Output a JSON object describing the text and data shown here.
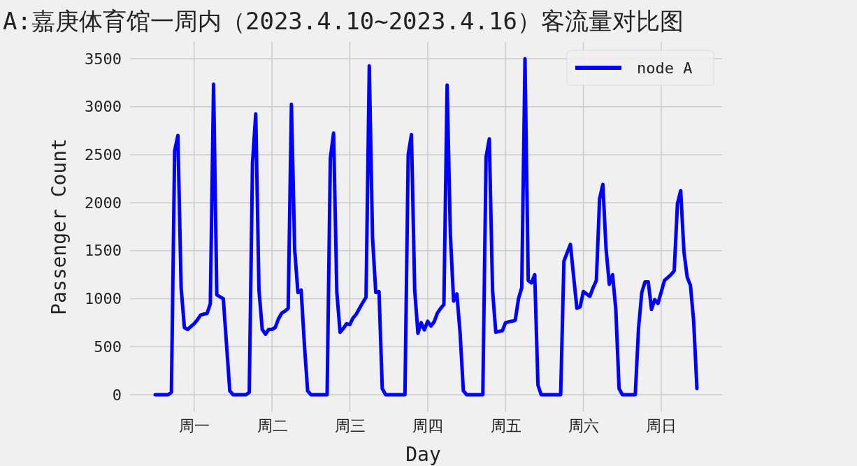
{
  "chart_data": {
    "type": "line",
    "title": "A:嘉庚体育馆一周内（2023.4.10~2023.4.16）客流量对比图",
    "xlabel": "Day",
    "ylabel": "Passenger Count",
    "categories": [
      null,
      null,
      null,
      null,
      null,
      null,
      null,
      null,
      null,
      null,
      null,
      null,
      "周一",
      null,
      null,
      null,
      null,
      null,
      null,
      null,
      null,
      null,
      null,
      null,
      null,
      null,
      null,
      null,
      null,
      null,
      null,
      null,
      null,
      null,
      null,
      null,
      "周二",
      null,
      null,
      null,
      null,
      null,
      null,
      null,
      null,
      null,
      null,
      null,
      null,
      null,
      null,
      null,
      null,
      null,
      null,
      null,
      null,
      null,
      null,
      null,
      "周三",
      null,
      null,
      null,
      null,
      null,
      null,
      null,
      null,
      null,
      null,
      null,
      null,
      null,
      null,
      null,
      null,
      null,
      null,
      null,
      null,
      null,
      null,
      null,
      "周四",
      null,
      null,
      null,
      null,
      null,
      null,
      null,
      null,
      null,
      null,
      null,
      null,
      null,
      null,
      null,
      null,
      null,
      null,
      null,
      null,
      null,
      null,
      null,
      "周五",
      null,
      null,
      null,
      null,
      null,
      null,
      null,
      null,
      null,
      null,
      null,
      null,
      null,
      null,
      null,
      null,
      null,
      null,
      null,
      null,
      null,
      null,
      null,
      "周六",
      null,
      null,
      null,
      null,
      null,
      null,
      null,
      null,
      null,
      null,
      null,
      null,
      null,
      null,
      null,
      null,
      null,
      null,
      null,
      null,
      null,
      null,
      null,
      "周日",
      null,
      null,
      null,
      null,
      null,
      null,
      null,
      null,
      null,
      null,
      null
    ],
    "ylim": [
      -175,
      3675
    ],
    "yticks": [
      0,
      500,
      1000,
      1500,
      2000,
      2500,
      3000,
      3500
    ],
    "grid": true,
    "legend": "top right",
    "line_style": "solid",
    "marker": "none",
    "series": [
      {
        "name": "node A",
        "color": "#0000ff",
        "values": [
          0,
          0,
          0,
          0,
          0,
          25,
          2540,
          2700,
          1115,
          700,
          680,
          710,
          740,
          780,
          830,
          840,
          845,
          950,
          3235,
          1040,
          1020,
          1000,
          520,
          40,
          0,
          0,
          0,
          0,
          0,
          25,
          2410,
          2925,
          1090,
          680,
          630,
          680,
          680,
          700,
          790,
          850,
          870,
          900,
          3025,
          1515,
          1065,
          1090,
          520,
          40,
          0,
          0,
          0,
          0,
          0,
          0,
          2465,
          2725,
          1065,
          650,
          690,
          740,
          730,
          800,
          840,
          900,
          960,
          1015,
          3425,
          1640,
          1065,
          1075,
          65,
          0,
          0,
          0,
          0,
          0,
          0,
          0,
          2500,
          2710,
          1090,
          640,
          750,
          675,
          765,
          715,
          760,
          850,
          900,
          940,
          3225,
          1665,
          975,
          1050,
          640,
          40,
          0,
          0,
          0,
          0,
          0,
          0,
          2475,
          2665,
          1090,
          650,
          660,
          665,
          750,
          760,
          765,
          775,
          1000,
          1115,
          3500,
          1190,
          1165,
          1250,
          100,
          0,
          0,
          0,
          0,
          0,
          0,
          0,
          1390,
          1480,
          1565,
          1230,
          900,
          915,
          1075,
          1050,
          1025,
          1115,
          1190,
          2040,
          2190,
          1515,
          1150,
          1250,
          890,
          65,
          0,
          0,
          0,
          0,
          0,
          690,
          1065,
          1175,
          1175,
          890,
          990,
          950,
          1070,
          1190,
          1220,
          1250,
          1290,
          1990,
          2125,
          1490,
          1225,
          1140,
          765,
          65
        ]
      }
    ]
  }
}
